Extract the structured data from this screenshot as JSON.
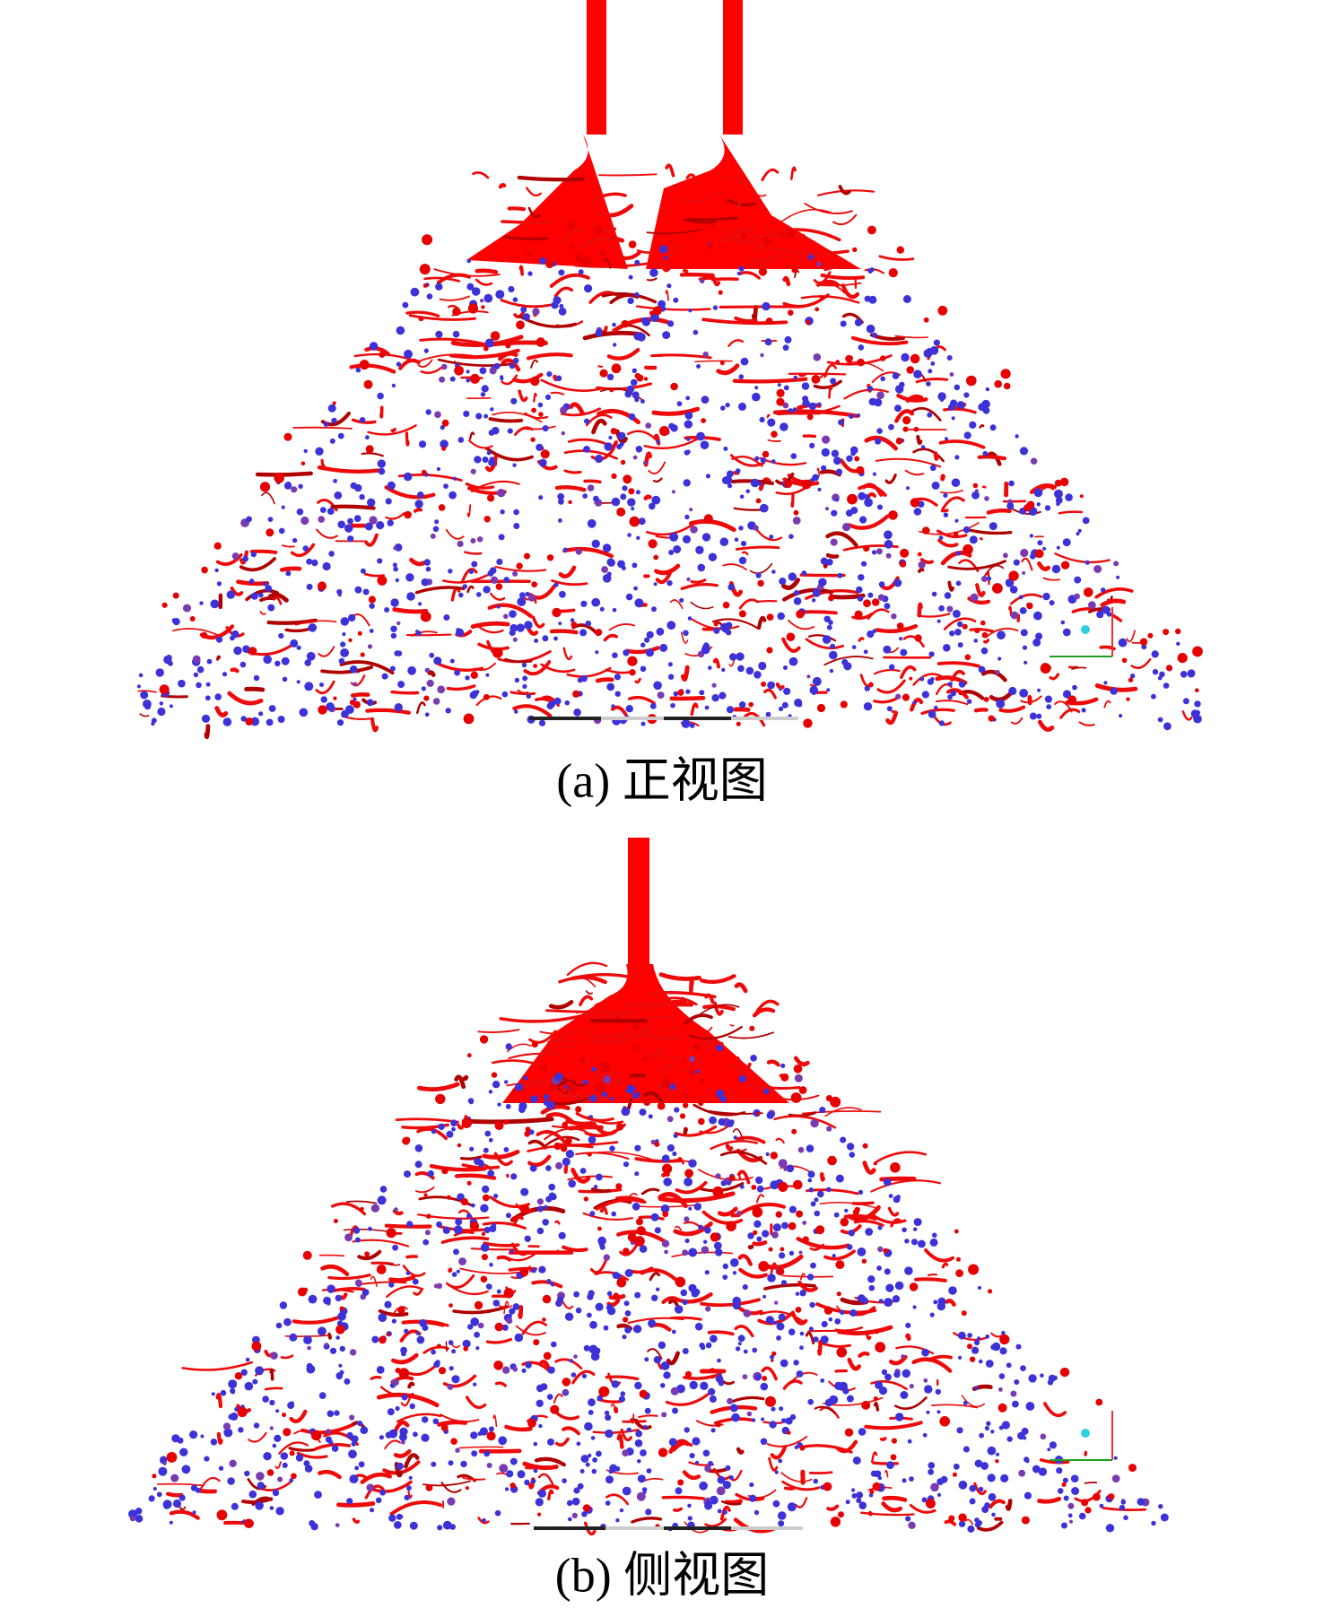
{
  "figure": {
    "panels": [
      {
        "caption": "(a) 正视图"
      },
      {
        "caption": "(b) 侧视图"
      }
    ]
  }
}
